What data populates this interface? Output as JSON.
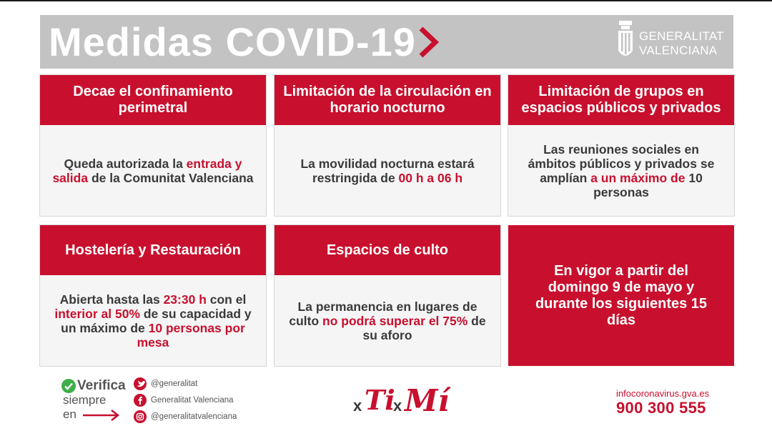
{
  "header": {
    "title": "Medidas COVID-19",
    "brand_line1": "GENERALITAT",
    "brand_line2": "VALENCIANA"
  },
  "cards": [
    {
      "title": "Decae el confinamiento perimetral",
      "body": [
        {
          "text": "Queda autorizada la ",
          "red": false
        },
        {
          "text": "entrada y salida",
          "red": true
        },
        {
          "text": " de la Comunitat Valenciana",
          "red": false
        }
      ]
    },
    {
      "title": "Limitación de la circulación en horario nocturno",
      "body": [
        {
          "text": "La movilidad nocturna estará restringida de ",
          "red": false
        },
        {
          "text": "00 h a 06 h",
          "red": true
        }
      ]
    },
    {
      "title": "Limitación de grupos en espacios públicos y privados",
      "body": [
        {
          "text": "Las reuniones sociales en ámbitos públicos y privados se amplían ",
          "red": false
        },
        {
          "text": "a un máximo de",
          "red": true
        },
        {
          "text": " 10 personas",
          "red": false
        }
      ]
    },
    {
      "title": "Hostelería y Restauración",
      "body": [
        {
          "text": "Abierta hasta las ",
          "red": false
        },
        {
          "text": "23:30 h",
          "red": true
        },
        {
          "text": " con el ",
          "red": false
        },
        {
          "text": "interior al 50%",
          "red": true
        },
        {
          "text": " de su capacidad y un máximo de ",
          "red": false
        },
        {
          "text": "10 personas por mesa",
          "red": true
        }
      ]
    },
    {
      "title": "Espacios de culto",
      "body": [
        {
          "text": "La permanencia en lugares de culto ",
          "red": false
        },
        {
          "text": "no podrá superar el 75%",
          "red": true
        },
        {
          "text": " de su aforo",
          "red": false
        }
      ]
    }
  ],
  "notice": "En vigor a partir del domingo 9 de mayo y durante los siguientes 15 días",
  "footer": {
    "verifica": "Verifica",
    "siempre": "siempre",
    "en": "en",
    "social": [
      {
        "icon": "twitter-icon",
        "label": "@generalitat"
      },
      {
        "icon": "facebook-icon",
        "label": "Generalitat Valenciana"
      },
      {
        "icon": "instagram-icon",
        "label": "@generalitatvalenciana"
      }
    ],
    "logo_text": "x Ti x Mí",
    "url": "infocoronavirus.gva.es",
    "phone": "900 300 555"
  },
  "colors": {
    "accent": "#c8102e",
    "header_bg": "#c3c3c3",
    "card_bg": "#f5f5f5",
    "check_green": "#3fae49"
  }
}
